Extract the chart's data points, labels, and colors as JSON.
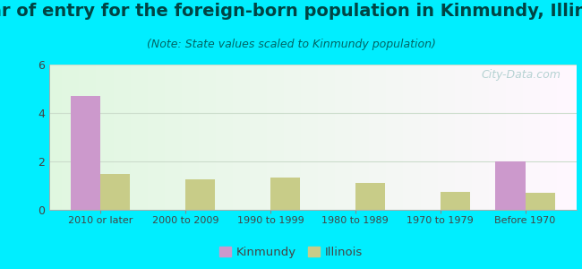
{
  "title": "Year of entry for the foreign-born population in Kinmundy, Illinois",
  "subtitle": "(Note: State values scaled to Kinmundy population)",
  "categories": [
    "2010 or later",
    "2000 to 2009",
    "1990 to 1999",
    "1980 to 1989",
    "1970 to 1979",
    "Before 1970"
  ],
  "kinmundy_values": [
    4.7,
    0,
    0,
    0,
    0,
    2.0
  ],
  "illinois_values": [
    1.5,
    1.25,
    1.35,
    1.1,
    0.75,
    0.7
  ],
  "kinmundy_color": "#cc99cc",
  "illinois_color": "#c8cc88",
  "background_outer": "#00eeff",
  "ylim": [
    0,
    6
  ],
  "yticks": [
    0,
    2,
    4,
    6
  ],
  "bar_width": 0.35,
  "title_fontsize": 14,
  "subtitle_fontsize": 9,
  "tick_fontsize": 8,
  "legend_labels": [
    "Kinmundy",
    "Illinois"
  ],
  "watermark": "City-Data.com",
  "title_color": "#004444",
  "subtitle_color": "#006666",
  "tick_color": "#444444"
}
